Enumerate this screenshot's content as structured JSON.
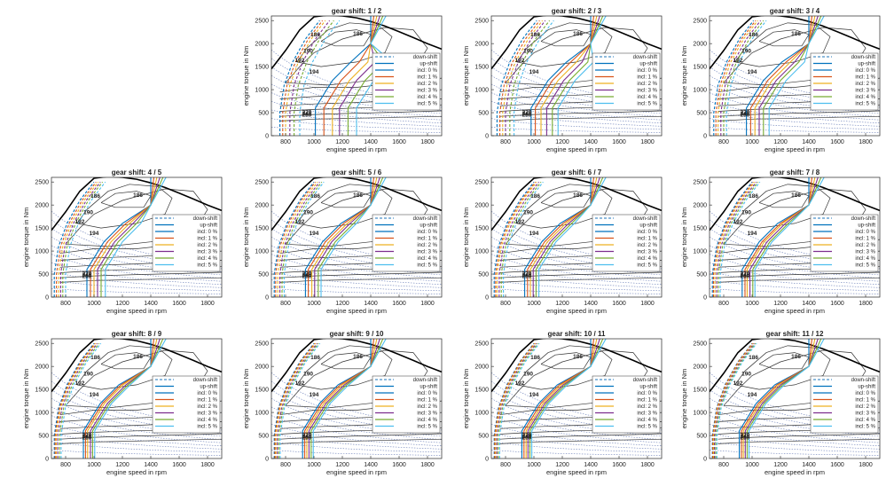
{
  "figure": {
    "xlabel": "engine speed in rpm",
    "ylabel": "engine torque in Nm",
    "xticks": [
      800,
      1000,
      1200,
      1400,
      1600,
      1800
    ],
    "yticks": [
      0,
      500,
      1000,
      1500,
      2000,
      2500
    ],
    "xlim": [
      700,
      1900
    ],
    "ylim": [
      0,
      2600
    ],
    "contour_labels": [
      "186",
      "186",
      "190",
      "192",
      "194",
      "220",
      "240",
      "260"
    ],
    "legend": [
      "down-shift",
      "up-shift",
      "incl: 0 %",
      "incl: 1 %",
      "incl: 2 %",
      "incl: 3 %",
      "incl: 4 %",
      "incl: 5 %"
    ],
    "colors": {
      "down_shift": "#4a90c8",
      "incl_0": "#0072bd",
      "incl_1": "#d95319",
      "incl_2": "#edb120",
      "incl_3": "#7e2f8e",
      "incl_4": "#77ac30",
      "incl_5": "#4dbeee",
      "full_load": "#000000",
      "contour": "#333333",
      "power_lines": "#6b7fb8"
    }
  },
  "chart_data": [
    {
      "type": "line",
      "title": "gear shift: 1 / 2",
      "upshift_rpm": [
        1010,
        1070,
        1130,
        1180,
        1240,
        1300
      ],
      "downshift_rpm": [
        760,
        780,
        800,
        830,
        860,
        900
      ]
    },
    {
      "type": "line",
      "title": "gear shift: 2 / 3",
      "upshift_rpm": [
        980,
        1010,
        1050,
        1090,
        1130,
        1170
      ],
      "downshift_rpm": [
        740,
        760,
        780,
        800,
        830,
        860
      ]
    },
    {
      "type": "line",
      "title": "gear shift: 3 / 4",
      "upshift_rpm": [
        960,
        990,
        1020,
        1050,
        1080,
        1120
      ],
      "downshift_rpm": [
        730,
        745,
        760,
        780,
        800,
        820
      ]
    },
    {
      "type": "line",
      "title": "gear shift: 4 / 5",
      "upshift_rpm": [
        950,
        975,
        1000,
        1025,
        1050,
        1080
      ],
      "downshift_rpm": [
        720,
        735,
        750,
        765,
        780,
        800
      ]
    },
    {
      "type": "line",
      "title": "gear shift: 5 / 6",
      "upshift_rpm": [
        940,
        960,
        985,
        1005,
        1030,
        1050
      ],
      "downshift_rpm": [
        720,
        730,
        745,
        760,
        775,
        790
      ]
    },
    {
      "type": "line",
      "title": "gear shift: 6 / 7",
      "upshift_rpm": [
        935,
        955,
        975,
        995,
        1015,
        1035
      ],
      "downshift_rpm": [
        720,
        730,
        740,
        755,
        770,
        785
      ]
    },
    {
      "type": "line",
      "title": "gear shift: 7 / 8",
      "upshift_rpm": [
        930,
        950,
        965,
        985,
        1005,
        1020
      ],
      "downshift_rpm": [
        720,
        728,
        738,
        750,
        762,
        775
      ]
    },
    {
      "type": "line",
      "title": "gear shift: 8 / 9",
      "upshift_rpm": [
        925,
        940,
        955,
        975,
        990,
        1005
      ],
      "downshift_rpm": [
        720,
        726,
        734,
        744,
        756,
        768
      ]
    },
    {
      "type": "line",
      "title": "gear shift: 9 / 10",
      "upshift_rpm": [
        920,
        935,
        950,
        965,
        980,
        995
      ],
      "downshift_rpm": [
        720,
        725,
        732,
        742,
        752,
        762
      ]
    },
    {
      "type": "line",
      "title": "gear shift: 10 / 11",
      "upshift_rpm": [
        915,
        930,
        945,
        958,
        972,
        985
      ],
      "downshift_rpm": [
        720,
        724,
        730,
        738,
        748,
        758
      ]
    },
    {
      "type": "line",
      "title": "gear shift: 11 / 12",
      "upshift_rpm": [
        910,
        925,
        938,
        952,
        965,
        978
      ],
      "downshift_rpm": [
        720,
        723,
        728,
        735,
        744,
        752
      ]
    }
  ]
}
